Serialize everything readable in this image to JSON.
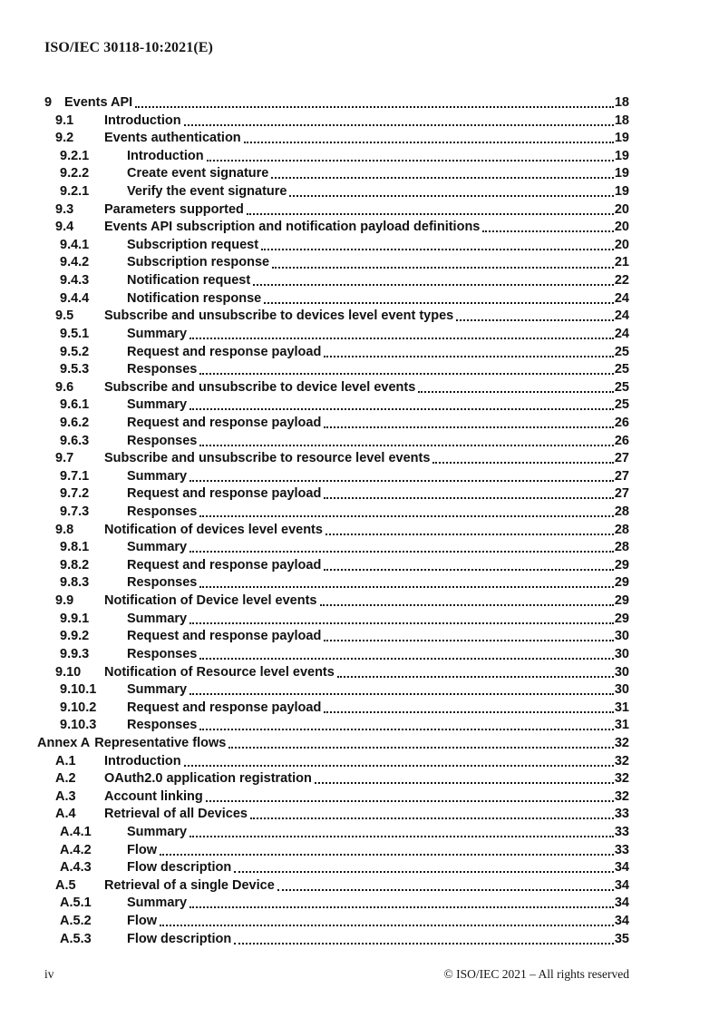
{
  "header": {
    "doc_id": "ISO/IEC 30118-10:2021(E)"
  },
  "toc": {
    "entries": [
      {
        "level": "1",
        "num": "9",
        "label": "Events API",
        "page": "18"
      },
      {
        "level": "2",
        "num": "9.1",
        "label": "Introduction",
        "page": "18"
      },
      {
        "level": "2",
        "num": "9.2",
        "label": "Events authentication",
        "page": "19"
      },
      {
        "level": "3",
        "num": "9.2.1",
        "label": "Introduction",
        "page": "19"
      },
      {
        "level": "3",
        "num": "9.2.2",
        "label": "Create event signature",
        "page": "19"
      },
      {
        "level": "3",
        "num": "9.2.1",
        "label": "Verify the event signature",
        "page": "19"
      },
      {
        "level": "2",
        "num": "9.3",
        "label": "Parameters supported",
        "page": "20"
      },
      {
        "level": "2",
        "num": "9.4",
        "label": "Events API subscription and notification payload definitions",
        "page": "20"
      },
      {
        "level": "3",
        "num": "9.4.1",
        "label": "Subscription request",
        "page": "20"
      },
      {
        "level": "3",
        "num": "9.4.2",
        "label": "Subscription response",
        "page": "21"
      },
      {
        "level": "3",
        "num": "9.4.3",
        "label": "Notification request",
        "page": "22"
      },
      {
        "level": "3",
        "num": "9.4.4",
        "label": "Notification response",
        "page": "24"
      },
      {
        "level": "2",
        "num": "9.5",
        "label": "Subscribe and unsubscribe to devices level event types",
        "page": "24"
      },
      {
        "level": "3",
        "num": "9.5.1",
        "label": "Summary",
        "page": "24"
      },
      {
        "level": "3",
        "num": "9.5.2",
        "label": "Request and response payload",
        "page": "25"
      },
      {
        "level": "3",
        "num": "9.5.3",
        "label": "Responses",
        "page": "25"
      },
      {
        "level": "2",
        "num": "9.6",
        "label": "Subscribe and unsubscribe to device level events",
        "page": "25"
      },
      {
        "level": "3",
        "num": "9.6.1",
        "label": "Summary",
        "page": "25"
      },
      {
        "level": "3",
        "num": "9.6.2",
        "label": "Request and response payload",
        "page": "26"
      },
      {
        "level": "3",
        "num": "9.6.3",
        "label": "Responses",
        "page": "26"
      },
      {
        "level": "2",
        "num": "9.7",
        "label": "Subscribe and unsubscribe to resource level events",
        "page": "27"
      },
      {
        "level": "3",
        "num": "9.7.1",
        "label": "Summary",
        "page": "27"
      },
      {
        "level": "3",
        "num": "9.7.2",
        "label": "Request and response payload",
        "page": "27"
      },
      {
        "level": "3",
        "num": "9.7.3",
        "label": "Responses",
        "page": "28"
      },
      {
        "level": "2",
        "num": "9.8",
        "label": "Notification of devices level events",
        "page": "28"
      },
      {
        "level": "3",
        "num": "9.8.1",
        "label": "Summary",
        "page": "28"
      },
      {
        "level": "3",
        "num": "9.8.2",
        "label": "Request and response payload",
        "page": "29"
      },
      {
        "level": "3",
        "num": "9.8.3",
        "label": "Responses",
        "page": "29"
      },
      {
        "level": "2",
        "num": "9.9",
        "label": "Notification of Device level events",
        "page": "29"
      },
      {
        "level": "3",
        "num": "9.9.1",
        "label": "Summary",
        "page": "29"
      },
      {
        "level": "3",
        "num": "9.9.2",
        "label": "Request and response payload",
        "page": "30"
      },
      {
        "level": "3",
        "num": "9.9.3",
        "label": "Responses",
        "page": "30"
      },
      {
        "level": "2",
        "num": "9.10",
        "label": "Notification of Resource level events",
        "page": "30"
      },
      {
        "level": "3",
        "num": "9.10.1",
        "label": "Summary",
        "page": "30"
      },
      {
        "level": "3",
        "num": "9.10.2",
        "label": "Request and response payload",
        "page": "31"
      },
      {
        "level": "3",
        "num": "9.10.3",
        "label": "Responses",
        "page": "31"
      },
      {
        "level": "annex",
        "num": "Annex A",
        "label": "Representative flows",
        "page": "32"
      },
      {
        "level": "2",
        "num": "A.1",
        "label": "Introduction",
        "page": "32"
      },
      {
        "level": "2",
        "num": "A.2",
        "label": "OAuth2.0 application registration",
        "page": "32"
      },
      {
        "level": "2",
        "num": "A.3",
        "label": "Account linking",
        "page": "32"
      },
      {
        "level": "2",
        "num": "A.4",
        "label": "Retrieval of all Devices",
        "page": "33"
      },
      {
        "level": "3",
        "num": "A.4.1",
        "label": "Summary",
        "page": "33"
      },
      {
        "level": "3",
        "num": "A.4.2",
        "label": "Flow",
        "page": "33"
      },
      {
        "level": "3",
        "num": "A.4.3",
        "label": "Flow description",
        "page": "34"
      },
      {
        "level": "2",
        "num": "A.5",
        "label": "Retrieval of a single Device",
        "page": "34"
      },
      {
        "level": "3",
        "num": "A.5.1",
        "label": "Summary",
        "page": "34"
      },
      {
        "level": "3",
        "num": "A.5.2",
        "label": "Flow",
        "page": "34"
      },
      {
        "level": "3",
        "num": "A.5.3",
        "label": "Flow description",
        "page": "35"
      }
    ]
  },
  "footer": {
    "page_label": "iv",
    "copyright": "© ISO/IEC 2021 – All rights reserved"
  }
}
